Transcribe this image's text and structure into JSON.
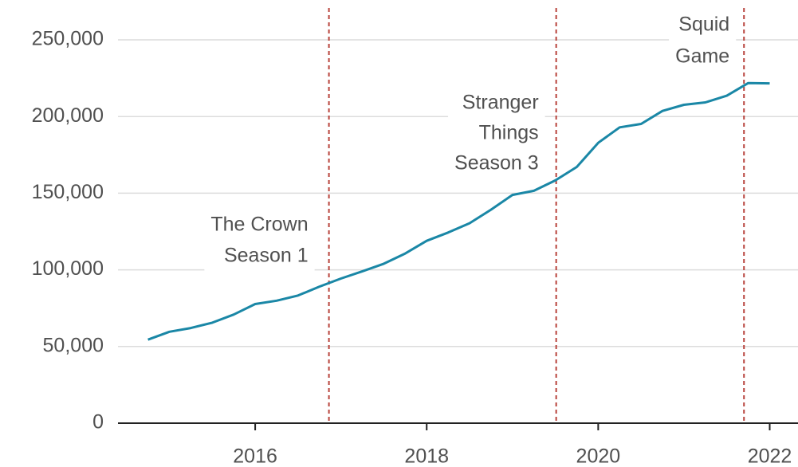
{
  "chart_data": {
    "type": "line",
    "x": [
      2014.75,
      2015,
      2015.25,
      2015.5,
      2015.75,
      2016,
      2016.25,
      2016.5,
      2016.75,
      2017,
      2017.25,
      2017.5,
      2017.75,
      2018,
      2018.25,
      2018.5,
      2018.75,
      2019,
      2019.25,
      2019.5,
      2019.75,
      2020,
      2020.25,
      2020.5,
      2020.75,
      2021,
      2021.25,
      2021.5,
      2021.75,
      2022
    ],
    "values": [
      54480,
      59620,
      62080,
      65560,
      70840,
      77710,
      79900,
      83280,
      89090,
      94360,
      99040,
      104020,
      110640,
      118900,
      124350,
      130420,
      139260,
      148860,
      151560,
      158330,
      167090,
      182860,
      192950,
      195150,
      203660,
      207640,
      209180,
      213560,
      221840,
      221640
    ],
    "color": "#1a87a6",
    "xlim": [
      2014.4,
      2022.33
    ],
    "xticks": [
      2016,
      2018,
      2020,
      2022
    ],
    "ylim": [
      0,
      260000
    ],
    "yticks": [
      0,
      {
        "value": 50000,
        "label": "50,000"
      },
      {
        "value": 100000,
        "label": "100,000"
      },
      {
        "value": 150000,
        "label": "150,000"
      },
      {
        "value": 200000,
        "label": "200,000"
      },
      {
        "value": 250000,
        "label": "250,000"
      }
    ],
    "grid": true,
    "annotations": [
      {
        "x": 2016.86,
        "lines": [
          "The Crown",
          "Season 1"
        ]
      },
      {
        "x": 2019.51,
        "lines": [
          "Stranger",
          "Things",
          "Season 3"
        ]
      },
      {
        "x": 2021.7,
        "lines": [
          "Squid",
          "Game"
        ]
      }
    ],
    "annotation_color": "#b8433c"
  }
}
